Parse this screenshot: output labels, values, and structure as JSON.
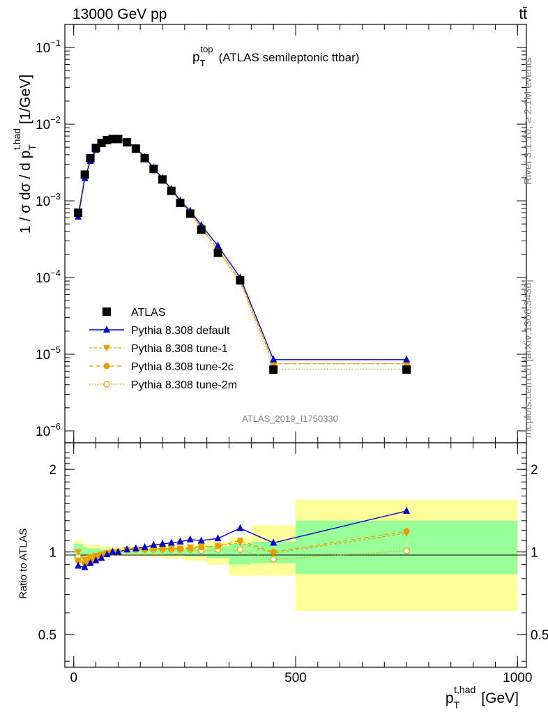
{
  "header": {
    "collision": "13000 GeV pp",
    "process": "tt̄",
    "plot_title_main": "p",
    "plot_title_sub": "T",
    "plot_title_sup": "top",
    "plot_title_rest": "(ATLAS semileptonic ttbar)",
    "rivet_label": "Rivet 3.1.10, ≥ 2.1M events",
    "mcplots_label": "mcplots.cern.ch [arXiv:1306.3436]",
    "analysis_label": "ATLAS_2019_I1750330"
  },
  "axes": {
    "ylabel_main": "1 / σ dσ / d p",
    "ylabel_sub": "T",
    "ylabel_sup": "t,had",
    "ylabel_unit": "[1/GeV]",
    "ylabel_ratio": "Ratio to ATLAS",
    "xlabel_main": "p",
    "xlabel_sub": "T",
    "xlabel_sup": "t,had",
    "xlabel_unit": "[GeV]",
    "main_yticks": [
      {
        "base": "10",
        "exp": "−6",
        "value": 1e-06
      },
      {
        "base": "10",
        "exp": "−5",
        "value": 1e-05
      },
      {
        "base": "10",
        "exp": "−4",
        "value": 0.0001
      },
      {
        "base": "10",
        "exp": "−3",
        "value": 0.001
      },
      {
        "base": "10",
        "exp": "−2",
        "value": 0.01
      },
      {
        "base": "10",
        "exp": "−1",
        "value": 0.1
      }
    ],
    "ratio_yticks": [
      {
        "label": "0.5",
        "value": 0.5
      },
      {
        "label": "1",
        "value": 1
      },
      {
        "label": "2",
        "value": 2
      }
    ],
    "xticks": [
      {
        "label": "0",
        "value": 0
      },
      {
        "label": "500",
        "value": 500
      },
      {
        "label": "1000",
        "value": 1000
      }
    ]
  },
  "legend": {
    "position": "middle-left",
    "entries": [
      {
        "label": "ATLAS",
        "series": "ATLAS"
      },
      {
        "label": "Pythia 8.308 default",
        "series": "default"
      },
      {
        "label": "Pythia 8.308 tune-1",
        "series": "tune-1"
      },
      {
        "label": "Pythia 8.308 tune-2c",
        "series": "tune-2c"
      },
      {
        "label": "Pythia 8.308 tune-2m",
        "series": "tune-2m"
      }
    ]
  },
  "colors": {
    "data": "#000000",
    "default": "#0000cc",
    "tunes": "#e69f00",
    "band_outer": "#ffff99",
    "band_inner": "#99ff99"
  },
  "chart_data": {
    "type": "line",
    "main": {
      "yscale": "log",
      "xlim": [
        -20,
        1020
      ],
      "ylim": [
        7e-07,
        0.2
      ],
      "x": [
        10,
        25,
        37.5,
        50,
        62.5,
        75,
        87.5,
        100,
        120,
        140,
        160,
        180,
        200,
        220,
        240,
        262.5,
        287.5,
        325,
        375,
        450,
        750
      ],
      "series": [
        {
          "name": "ATLAS",
          "marker": "square",
          "values": [
            0.0007,
            0.0022,
            0.0036,
            0.0049,
            0.0057,
            0.0062,
            0.0064,
            0.0064,
            0.0058,
            0.0048,
            0.0036,
            0.0026,
            0.0019,
            0.00135,
            0.00094,
            0.00068,
            0.00042,
            0.00021,
            9.2e-05,
            6.3e-06,
            6.3e-06
          ]
        },
        {
          "name": "Pythia 8.308 default",
          "marker": "triangle-up",
          "values": [
            0.00062,
            0.00196,
            0.0033,
            0.0046,
            0.0055,
            0.0061,
            0.0064,
            0.0064,
            0.0059,
            0.0049,
            0.0037,
            0.0027,
            0.00197,
            0.00142,
            0.00101,
            0.00074,
            0.00048,
            0.00026,
            0.0001,
            8.5e-06,
            8.5e-06
          ]
        },
        {
          "name": "Pythia 8.308 tune-1",
          "marker": "triangle-down",
          "values": [
            0.0007,
            0.00205,
            0.00335,
            0.0046,
            0.00555,
            0.0061,
            0.0064,
            0.0064,
            0.0059,
            0.0049,
            0.0037,
            0.00265,
            0.00195,
            0.0014,
            0.00098,
            0.00071,
            0.00045,
            0.00023,
            9.2e-05,
            7.5e-06,
            7.5e-06
          ]
        },
        {
          "name": "Pythia 8.308 tune-2c",
          "marker": "circle",
          "values": [
            0.00066,
            0.00202,
            0.0033,
            0.0046,
            0.0055,
            0.0061,
            0.0064,
            0.0064,
            0.0059,
            0.0049,
            0.0037,
            0.00265,
            0.00195,
            0.0014,
            0.00098,
            0.00071,
            0.00045,
            0.00023,
            9.2e-05,
            7.5e-06,
            7.5e-06
          ]
        },
        {
          "name": "Pythia 8.308 tune-2m",
          "marker": "circle-open",
          "values": [
            0.00068,
            0.00204,
            0.0034,
            0.0047,
            0.0056,
            0.0061,
            0.0064,
            0.0064,
            0.0059,
            0.0049,
            0.0037,
            0.00265,
            0.00195,
            0.00138,
            0.00096,
            0.00069,
            0.00043,
            0.000215,
            8.8e-05,
            6.4e-06,
            6.4e-06
          ]
        }
      ]
    },
    "ratio": {
      "yscale": "log",
      "ylim": [
        0.38,
        2.5
      ],
      "reference": 1,
      "x": [
        10,
        25,
        37.5,
        50,
        62.5,
        75,
        87.5,
        100,
        120,
        140,
        160,
        180,
        200,
        220,
        240,
        262.5,
        287.5,
        325,
        375,
        450,
        750
      ],
      "series": [
        {
          "name": "Pythia 8.308 default",
          "values": [
            0.89,
            0.88,
            0.91,
            0.93,
            0.95,
            0.98,
            1.0,
            1.0,
            1.02,
            1.03,
            1.04,
            1.06,
            1.07,
            1.08,
            1.09,
            1.11,
            1.1,
            1.12,
            1.22,
            1.08,
            1.41
          ]
        },
        {
          "name": "Pythia 8.308 tune-1",
          "values": [
            1.0,
            0.94,
            0.96,
            0.97,
            0.98,
            0.99,
            1.0,
            1.0,
            1.02,
            1.02,
            1.02,
            1.03,
            1.03,
            1.03,
            1.03,
            1.04,
            1.05,
            1.05,
            1.08,
            0.99,
            1.17
          ]
        },
        {
          "name": "Pythia 8.308 tune-2c",
          "values": [
            0.93,
            0.91,
            0.93,
            0.95,
            0.97,
            0.99,
            1.0,
            1.0,
            1.02,
            1.02,
            1.02,
            1.03,
            1.03,
            1.03,
            1.03,
            1.03,
            1.04,
            1.05,
            1.1,
            1.0,
            1.19
          ]
        },
        {
          "name": "Pythia 8.308 tune-2m",
          "values": [
            0.96,
            0.92,
            0.94,
            0.96,
            0.97,
            0.99,
            1.0,
            1.0,
            1.02,
            1.02,
            1.02,
            1.02,
            1.02,
            1.02,
            1.02,
            1.02,
            1.01,
            1.02,
            1.02,
            0.94,
            1.01
          ]
        }
      ],
      "bands": [
        {
          "x_from": 0,
          "x_to": 20,
          "outer": [
            0.92,
            1.1
          ],
          "inner": [
            0.94,
            1.07
          ]
        },
        {
          "x_from": 20,
          "x_to": 30,
          "outer": [
            0.95,
            1.07
          ],
          "inner": [
            0.97,
            1.04
          ]
        },
        {
          "x_from": 30,
          "x_to": 60,
          "outer": [
            0.96,
            1.06
          ],
          "inner": [
            0.98,
            1.03
          ]
        },
        {
          "x_from": 60,
          "x_to": 80,
          "outer": [
            0.97,
            1.05
          ],
          "inner": [
            0.98,
            1.02
          ]
        },
        {
          "x_from": 80,
          "x_to": 110,
          "outer": [
            0.975,
            1.04
          ],
          "inner": [
            0.985,
            1.02
          ]
        },
        {
          "x_from": 110,
          "x_to": 150,
          "outer": [
            0.97,
            1.04
          ],
          "inner": [
            0.985,
            1.02
          ]
        },
        {
          "x_from": 150,
          "x_to": 200,
          "outer": [
            0.96,
            1.045
          ],
          "inner": [
            0.98,
            1.025
          ]
        },
        {
          "x_from": 200,
          "x_to": 250,
          "outer": [
            0.945,
            1.055
          ],
          "inner": [
            0.975,
            1.03
          ]
        },
        {
          "x_from": 250,
          "x_to": 300,
          "outer": [
            0.93,
            1.065
          ],
          "inner": [
            0.965,
            1.035
          ]
        },
        {
          "x_from": 300,
          "x_to": 350,
          "outer": [
            0.9,
            1.09
          ],
          "inner": [
            0.95,
            1.05
          ]
        },
        {
          "x_from": 350,
          "x_to": 400,
          "outer": [
            0.82,
            1.13
          ],
          "inner": [
            0.9,
            1.07
          ]
        },
        {
          "x_from": 400,
          "x_to": 500,
          "outer": [
            0.82,
            1.25
          ],
          "inner": [
            0.91,
            1.09
          ]
        },
        {
          "x_from": 500,
          "x_to": 1000,
          "outer": [
            0.61,
            1.55
          ],
          "inner": [
            0.83,
            1.3
          ]
        }
      ]
    }
  }
}
